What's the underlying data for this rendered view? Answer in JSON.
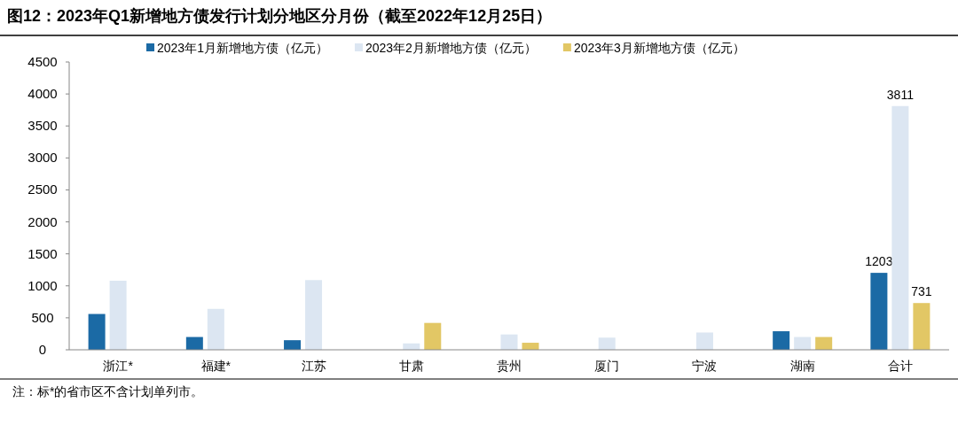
{
  "chart_data": {
    "type": "bar",
    "title": "图12：2023年Q1新增地方债发行计划分地区分月份（截至2022年12月25日）",
    "categories": [
      "浙江*",
      "福建*",
      "江苏",
      "甘肃",
      "贵州",
      "厦门",
      "宁波",
      "湖南",
      "合计"
    ],
    "series": [
      {
        "name": "2023年1月新增地方债（亿元）",
        "color": "#1b6aa5",
        "values": [
          560,
          200,
          150,
          null,
          null,
          null,
          null,
          290,
          1203
        ],
        "value_labels": [
          null,
          null,
          null,
          null,
          null,
          null,
          null,
          null,
          "1203"
        ]
      },
      {
        "name": "2023年2月新增地方债（亿元）",
        "color": "#dce6f2",
        "values": [
          1080,
          640,
          1090,
          100,
          240,
          190,
          270,
          200,
          3811
        ],
        "value_labels": [
          null,
          null,
          null,
          null,
          null,
          null,
          null,
          null,
          "3811"
        ]
      },
      {
        "name": "2023年3月新增地方债（亿元）",
        "color": "#e2c765",
        "values": [
          null,
          null,
          null,
          420,
          110,
          null,
          null,
          200,
          731
        ],
        "value_labels": [
          null,
          null,
          null,
          null,
          null,
          null,
          null,
          null,
          "731"
        ]
      }
    ],
    "ylim": [
      0,
      4500
    ],
    "yticks": [
      0,
      500,
      1000,
      1500,
      2000,
      2500,
      3000,
      3500,
      4000,
      4500
    ],
    "legend": "top",
    "annotations": [
      "注：标*的省市区不含计划单列市。"
    ]
  }
}
